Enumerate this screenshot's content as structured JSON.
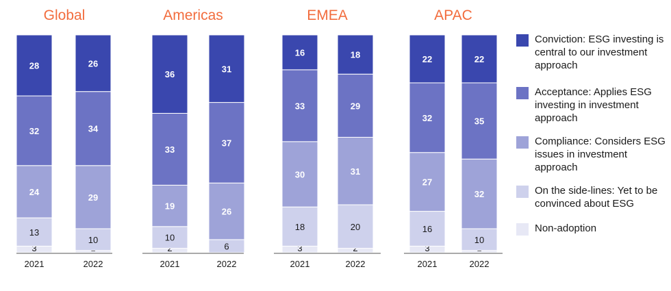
{
  "chart_data": {
    "type": "bar",
    "stacked": true,
    "panels": [
      {
        "title": "Global",
        "categories": [
          "2021",
          "2022"
        ],
        "series": [
          {
            "name": "Non-adoption",
            "values": [
              3,
              1
            ]
          },
          {
            "name": "On the side-lines: Yet to be convinced about ESG",
            "values": [
              13,
              10
            ]
          },
          {
            "name": "Compliance: Considers ESG issues in investment approach",
            "values": [
              24,
              29
            ]
          },
          {
            "name": "Acceptance: Applies ESG investing in investment approach",
            "values": [
              32,
              34
            ]
          },
          {
            "name": "Conviction: ESG investing is central to our investment approach",
            "values": [
              28,
              26
            ]
          }
        ]
      },
      {
        "title": "Americas",
        "categories": [
          "2021",
          "2022"
        ],
        "series": [
          {
            "name": "Non-adoption",
            "values": [
              2,
              0
            ]
          },
          {
            "name": "On the side-lines: Yet to be convinced about ESG",
            "values": [
              10,
              6
            ]
          },
          {
            "name": "Compliance: Considers ESG issues in investment approach",
            "values": [
              19,
              26
            ]
          },
          {
            "name": "Acceptance: Applies ESG investing in investment approach",
            "values": [
              33,
              37
            ]
          },
          {
            "name": "Conviction: ESG investing is central to our investment approach",
            "values": [
              36,
              31
            ]
          }
        ]
      },
      {
        "title": "EMEA",
        "categories": [
          "2021",
          "2022"
        ],
        "series": [
          {
            "name": "Non-adoption",
            "values": [
              3,
              2
            ]
          },
          {
            "name": "On the side-lines: Yet to be convinced about ESG",
            "values": [
              18,
              20
            ]
          },
          {
            "name": "Compliance: Considers ESG issues in investment approach",
            "values": [
              30,
              31
            ]
          },
          {
            "name": "Acceptance: Applies ESG investing in investment approach",
            "values": [
              33,
              29
            ]
          },
          {
            "name": "Conviction: ESG investing is central to our investment approach",
            "values": [
              16,
              18
            ]
          }
        ]
      },
      {
        "title": "APAC",
        "categories": [
          "2021",
          "2022"
        ],
        "series": [
          {
            "name": "Non-adoption",
            "values": [
              3,
              1
            ]
          },
          {
            "name": "On the side-lines: Yet to be convinced about ESG",
            "values": [
              16,
              10
            ]
          },
          {
            "name": "Compliance: Considers ESG issues in investment approach",
            "values": [
              27,
              32
            ]
          },
          {
            "name": "Acceptance: Applies ESG investing in investment approach",
            "values": [
              32,
              35
            ]
          },
          {
            "name": "Conviction: ESG investing is central to our investment approach",
            "values": [
              22,
              22
            ]
          }
        ]
      }
    ],
    "ylim": [
      0,
      100
    ],
    "grid": false,
    "legend_position": "right",
    "colors": [
      "#e7e8f5",
      "#ced1ec",
      "#9ea3d8",
      "#6c73c4",
      "#3a47ae"
    ],
    "title_color": "#f26c3d"
  },
  "legend": [
    {
      "label": "Conviction: ESG investing is central to our investment approach",
      "color": "#3a47ae"
    },
    {
      "label": "Acceptance: Applies ESG investing in investment approach",
      "color": "#6c73c4"
    },
    {
      "label": "Compliance: Considers ESG issues in investment approach",
      "color": "#9ea3d8"
    },
    {
      "label": "On the side-lines: Yet to be convinced about ESG",
      "color": "#ced1ec"
    },
    {
      "label": "Non-adoption",
      "color": "#e7e8f5"
    }
  ]
}
